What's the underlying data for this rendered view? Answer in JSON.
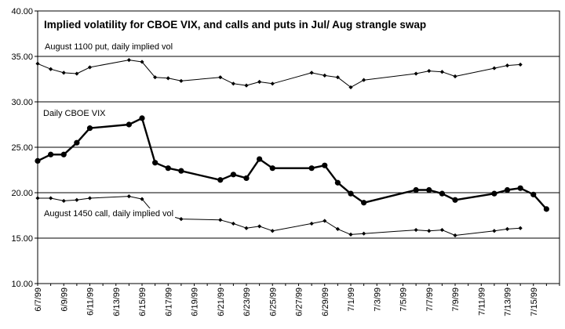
{
  "chart_data": {
    "type": "line",
    "title": "Implied volatility for CBOE VIX, and calls and puts in Jul/ Aug strangle swap",
    "xlabel": "",
    "ylabel": "",
    "ylim": [
      10,
      40
    ],
    "yticks": [
      "10.00",
      "15.00",
      "20.00",
      "25.00",
      "30.00",
      "35.00",
      "40.00"
    ],
    "xlim": [
      "1999-06-07",
      "1999-07-17"
    ],
    "xticks": [
      "6/7/99",
      "6/9/99",
      "6/11/99",
      "6/13/99",
      "6/15/99",
      "6/17/99",
      "6/19/99",
      "6/21/99",
      "6/23/99",
      "6/25/99",
      "6/27/99",
      "6/29/99",
      "7/1/99",
      "7/3/99",
      "7/5/99",
      "7/7/99",
      "7/9/99",
      "7/11/99",
      "7/13/99",
      "7/15/99"
    ],
    "grid": "horizontal",
    "annotations": [
      {
        "text": "August 1100 put, daily implied vol",
        "series": "put"
      },
      {
        "text": "Daily CBOE VIX",
        "series": "vix"
      },
      {
        "text": "August 1450 call, daily implied vol",
        "series": "call"
      }
    ],
    "series": [
      {
        "id": "put",
        "bold": false,
        "color": "#000000",
        "points": [
          [
            "1999-06-07",
            34.2
          ],
          [
            "1999-06-08",
            33.6
          ],
          [
            "1999-06-09",
            33.2
          ],
          [
            "1999-06-10",
            33.1
          ],
          [
            "1999-06-11",
            33.8
          ],
          [
            "1999-06-14",
            34.6
          ],
          [
            "1999-06-15",
            34.4
          ],
          [
            "1999-06-16",
            32.7
          ],
          [
            "1999-06-17",
            32.6
          ],
          [
            "1999-06-18",
            32.3
          ],
          [
            "1999-06-21",
            32.7
          ],
          [
            "1999-06-22",
            32.0
          ],
          [
            "1999-06-23",
            31.8
          ],
          [
            "1999-06-24",
            32.2
          ],
          [
            "1999-06-25",
            32.0
          ],
          [
            "1999-06-28",
            33.2
          ],
          [
            "1999-06-29",
            32.9
          ],
          [
            "1999-06-30",
            32.7
          ],
          [
            "1999-07-01",
            31.6
          ],
          [
            "1999-07-02",
            32.4
          ],
          [
            "1999-07-06",
            33.1
          ],
          [
            "1999-07-07",
            33.4
          ],
          [
            "1999-07-08",
            33.3
          ],
          [
            "1999-07-09",
            32.8
          ],
          [
            "1999-07-12",
            33.7
          ],
          [
            "1999-07-13",
            34.0
          ],
          [
            "1999-07-14",
            34.1
          ]
        ]
      },
      {
        "id": "vix",
        "bold": true,
        "color": "#000000",
        "points": [
          [
            "1999-06-07",
            23.5
          ],
          [
            "1999-06-08",
            24.2
          ],
          [
            "1999-06-09",
            24.2
          ],
          [
            "1999-06-10",
            25.5
          ],
          [
            "1999-06-11",
            27.1
          ],
          [
            "1999-06-14",
            27.5
          ],
          [
            "1999-06-15",
            28.2
          ],
          [
            "1999-06-16",
            23.3
          ],
          [
            "1999-06-17",
            22.7
          ],
          [
            "1999-06-18",
            22.4
          ],
          [
            "1999-06-21",
            21.4
          ],
          [
            "1999-06-22",
            22.0
          ],
          [
            "1999-06-23",
            21.6
          ],
          [
            "1999-06-24",
            23.7
          ],
          [
            "1999-06-25",
            22.7
          ],
          [
            "1999-06-28",
            22.7
          ],
          [
            "1999-06-29",
            23.0
          ],
          [
            "1999-06-30",
            21.1
          ],
          [
            "1999-07-01",
            19.9
          ],
          [
            "1999-07-02",
            18.9
          ],
          [
            "1999-07-06",
            20.3
          ],
          [
            "1999-07-07",
            20.3
          ],
          [
            "1999-07-08",
            19.9
          ],
          [
            "1999-07-09",
            19.2
          ],
          [
            "1999-07-12",
            19.9
          ],
          [
            "1999-07-13",
            20.3
          ],
          [
            "1999-07-14",
            20.5
          ],
          [
            "1999-07-15",
            19.8
          ],
          [
            "1999-07-16",
            18.2
          ]
        ]
      },
      {
        "id": "call",
        "bold": false,
        "color": "#000000",
        "points": [
          [
            "1999-06-07",
            19.4
          ],
          [
            "1999-06-08",
            19.4
          ],
          [
            "1999-06-09",
            19.1
          ],
          [
            "1999-06-10",
            19.2
          ],
          [
            "1999-06-11",
            19.4
          ],
          [
            "1999-06-14",
            19.6
          ],
          [
            "1999-06-15",
            19.3
          ],
          [
            "1999-06-16",
            17.6
          ],
          [
            "1999-06-17",
            17.5
          ],
          [
            "1999-06-18",
            17.1
          ],
          [
            "1999-06-21",
            17.0
          ],
          [
            "1999-06-22",
            16.6
          ],
          [
            "1999-06-23",
            16.1
          ],
          [
            "1999-06-24",
            16.3
          ],
          [
            "1999-06-25",
            15.8
          ],
          [
            "1999-06-28",
            16.6
          ],
          [
            "1999-06-29",
            16.9
          ],
          [
            "1999-06-30",
            16.0
          ],
          [
            "1999-07-01",
            15.4
          ],
          [
            "1999-07-02",
            15.5
          ],
          [
            "1999-07-06",
            15.9
          ],
          [
            "1999-07-07",
            15.8
          ],
          [
            "1999-07-08",
            15.9
          ],
          [
            "1999-07-09",
            15.3
          ],
          [
            "1999-07-12",
            15.8
          ],
          [
            "1999-07-13",
            16.0
          ],
          [
            "1999-07-14",
            16.1
          ]
        ]
      }
    ]
  }
}
